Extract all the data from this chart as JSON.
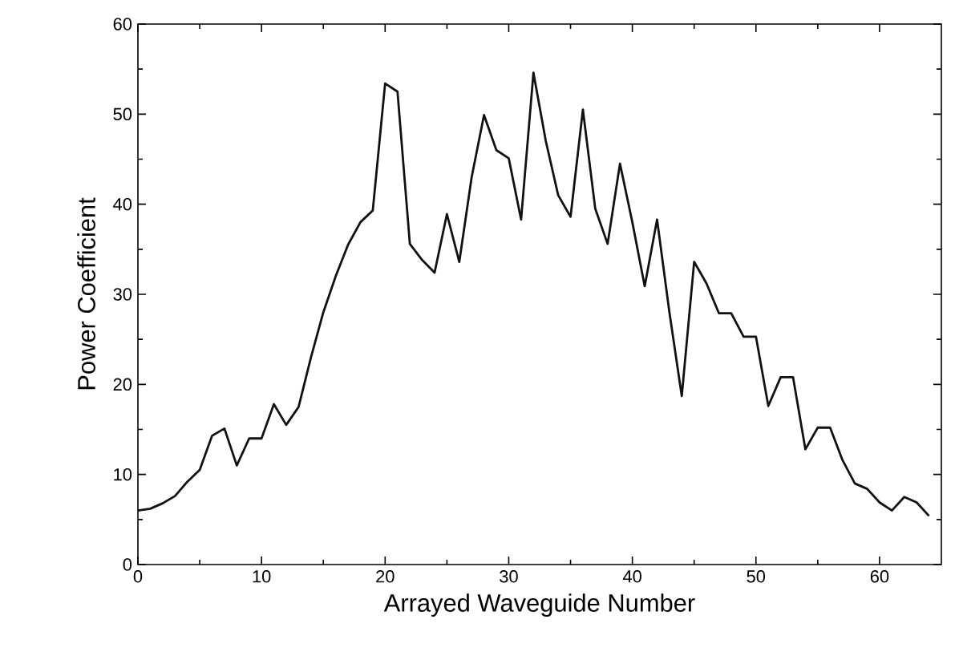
{
  "chart_data": {
    "type": "line",
    "xlabel": "Arrayed Waveguide Number",
    "ylabel": "Power Coefficient",
    "x": [
      0,
      1,
      2,
      3,
      4,
      5,
      6,
      7,
      8,
      9,
      10,
      11,
      12,
      13,
      14,
      15,
      16,
      17,
      18,
      19,
      20,
      21,
      22,
      23,
      24,
      25,
      26,
      27,
      28,
      29,
      30,
      31,
      32,
      33,
      34,
      35,
      36,
      37,
      38,
      39,
      40,
      41,
      42,
      43,
      44,
      45,
      46,
      47,
      48,
      49,
      50,
      51,
      52,
      53,
      54,
      55,
      56,
      57,
      58,
      59,
      60,
      61,
      62,
      63,
      64
    ],
    "series": [
      {
        "color": "#111111",
        "values": [
          6.0,
          6.2,
          6.8,
          7.6,
          9.2,
          10.5,
          14.3,
          15.1,
          11.0,
          14.0,
          14.0,
          17.8,
          15.5,
          17.5,
          23,
          28,
          32,
          35.5,
          38,
          39.3,
          53.4,
          52.5,
          35.6,
          33.8,
          32.4,
          38.9,
          33.6,
          43,
          49.9,
          46,
          45.1,
          38.3,
          54.6,
          47,
          41,
          38.6,
          50.5,
          39.5,
          35.6,
          44.5,
          38,
          30.9,
          38.3,
          28,
          18.7,
          33.6,
          31.2,
          27.9,
          27.9,
          25.3,
          25.3,
          17.6,
          20.8,
          20.8,
          12.8,
          15.2,
          15.2,
          11.6,
          9.0,
          8.4,
          6.9,
          6.0,
          7.5,
          6.9,
          5.4
        ]
      }
    ],
    "xlim": [
      0,
      65
    ],
    "ylim": [
      0,
      60
    ],
    "xticks": [
      0,
      10,
      20,
      30,
      40,
      50,
      60
    ],
    "yticks": [
      0,
      10,
      20,
      30,
      40,
      50,
      60
    ],
    "grid": false,
    "marker": "none",
    "line_style": "solid"
  }
}
